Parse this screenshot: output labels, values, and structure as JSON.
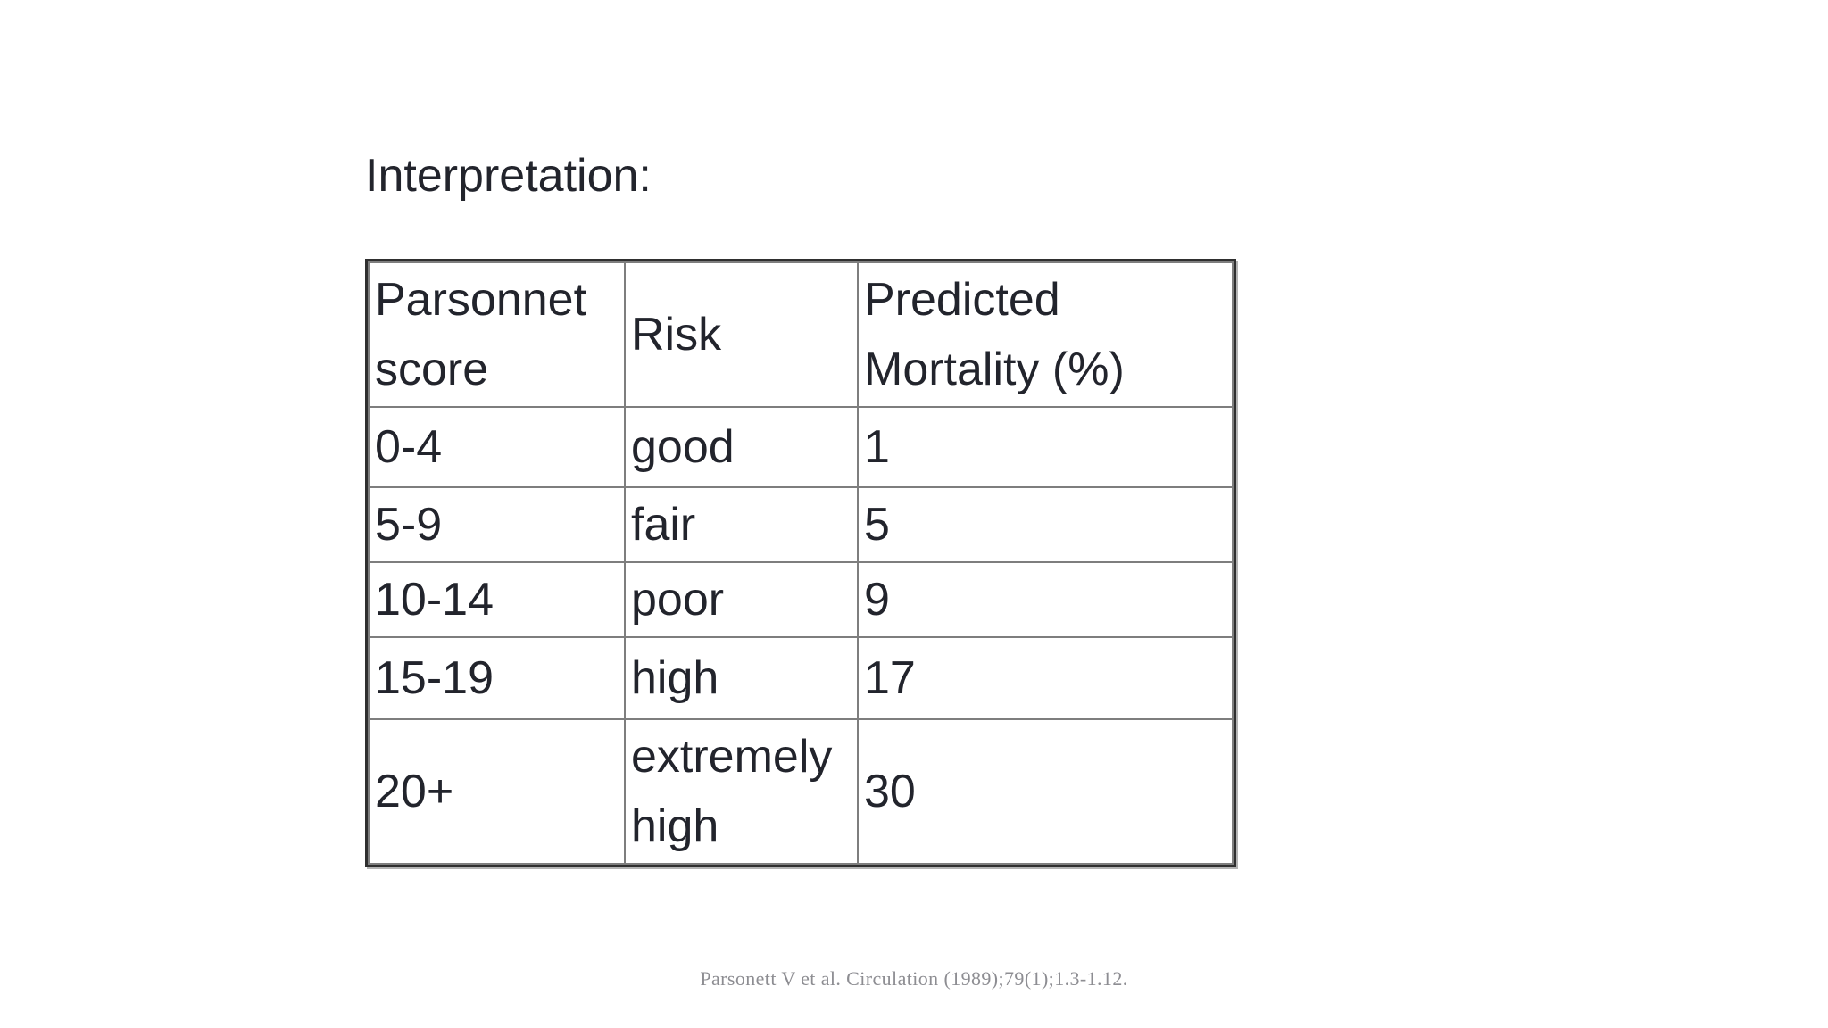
{
  "page": {
    "title": "Interpretation:",
    "citation": "Parsonett V et al. Circulation (1989);79(1);1.3-1.12.",
    "background_color": "#ffffff",
    "text_color": "#22242c",
    "gridline_color": "#7e7e7e",
    "outer_border_color": "#2f2f2f",
    "citation_color": "#8d8d92"
  },
  "table": {
    "headers": [
      "Parsonnet score",
      "Risk",
      "Predicted Mortality (%)"
    ],
    "rows": [
      {
        "score": "0-4",
        "risk": "good",
        "mortality": "1"
      },
      {
        "score": "5-9",
        "risk": "fair",
        "mortality": "5"
      },
      {
        "score": "10-14",
        "risk": "poor",
        "mortality": "9"
      },
      {
        "score": "15-19",
        "risk": "high",
        "mortality": "17"
      },
      {
        "score": "20+",
        "risk": "extremely high",
        "mortality": "30"
      }
    ]
  }
}
